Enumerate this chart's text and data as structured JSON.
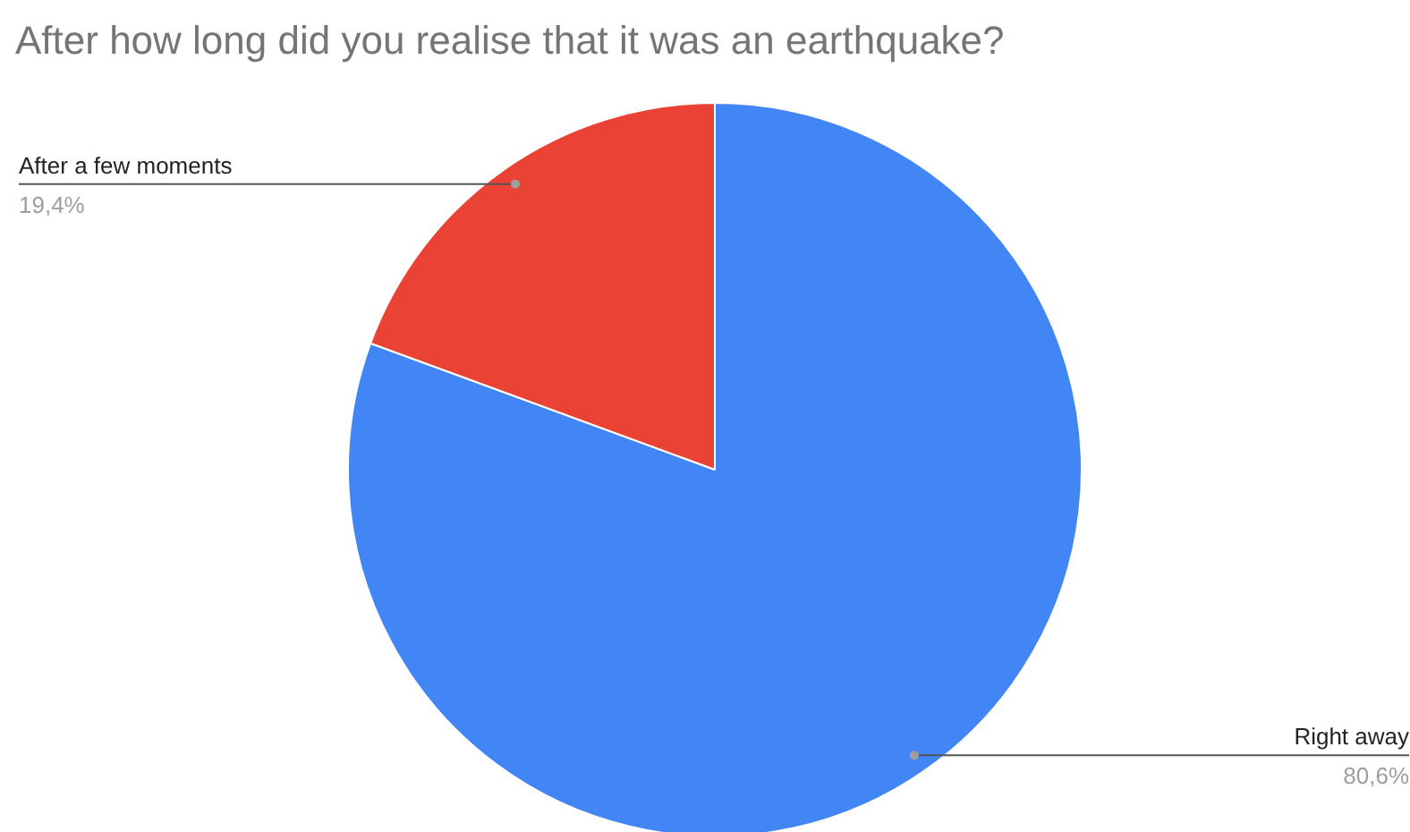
{
  "chart_data": {
    "type": "pie",
    "title": "After how long did you realise that it was an earthquake?",
    "categories": [
      "Right away",
      "After a few moments"
    ],
    "values": [
      80.6,
      19.4
    ],
    "colors": [
      "#4285f4",
      "#ea4335"
    ],
    "value_labels": [
      "80,6%",
      "19,4%"
    ]
  }
}
